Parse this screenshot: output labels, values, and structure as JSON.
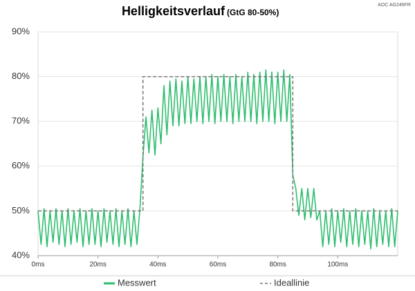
{
  "chart_data": {
    "type": "line",
    "title": "Helligkeitsverlauf",
    "subtitle": "(GtG 80-50%)",
    "annotation": "AOC AG246FR",
    "xlim": [
      0,
      120
    ],
    "xticks": [
      {
        "value": 0,
        "label": "0ms"
      },
      {
        "value": 20,
        "label": "20ms"
      },
      {
        "value": 40,
        "label": "40ms"
      },
      {
        "value": 60,
        "label": "60ms"
      },
      {
        "value": 80,
        "label": "80ms"
      },
      {
        "value": 100,
        "label": "100ms"
      }
    ],
    "ylim": [
      40,
      90
    ],
    "yticks": [
      {
        "value": 40,
        "label": "40%"
      },
      {
        "value": 50,
        "label": "50%"
      },
      {
        "value": 60,
        "label": "60%"
      },
      {
        "value": 70,
        "label": "70%"
      },
      {
        "value": 80,
        "label": "80%"
      },
      {
        "value": 90,
        "label": "90%"
      }
    ],
    "grid": true,
    "legend": "bottom",
    "series": [
      {
        "name": "Messwert",
        "color": "#2dbd6e",
        "dashed": false,
        "x": [
          0,
          1,
          2,
          3,
          4,
          5,
          6,
          7,
          8,
          9,
          10,
          11,
          12,
          13,
          14,
          15,
          16,
          17,
          18,
          19,
          20,
          21,
          22,
          23,
          24,
          25,
          26,
          27,
          28,
          29,
          30,
          31,
          32,
          33,
          34,
          35,
          36,
          37,
          38,
          39,
          40,
          41,
          42,
          43,
          44,
          45,
          46,
          47,
          48,
          49,
          50,
          51,
          52,
          53,
          54,
          55,
          56,
          57,
          58,
          59,
          60,
          61,
          62,
          63,
          64,
          65,
          66,
          67,
          68,
          69,
          70,
          71,
          72,
          73,
          74,
          75,
          76,
          77,
          78,
          79,
          80,
          81,
          82,
          83,
          84,
          85,
          86,
          87,
          88,
          89,
          90,
          91,
          92,
          93,
          94,
          95,
          96,
          97,
          98,
          99,
          100,
          101,
          102,
          103,
          104,
          105,
          106,
          107,
          108,
          109,
          110,
          111,
          112,
          113,
          114,
          115,
          116,
          117,
          118,
          119,
          120
        ],
        "values": [
          50,
          42.5,
          50.5,
          42,
          50,
          43,
          50.5,
          42.5,
          50,
          42,
          50.5,
          42.5,
          50,
          43,
          50.5,
          42,
          50,
          42.5,
          50.5,
          42.5,
          50,
          42,
          50.5,
          43,
          50,
          42.5,
          50.5,
          42,
          50,
          42.5,
          50.5,
          42,
          50,
          42.5,
          50.5,
          62,
          71,
          63,
          72.5,
          62.5,
          73,
          65,
          78,
          67,
          79,
          69,
          79.5,
          69,
          79,
          69.5,
          80,
          69.5,
          79.5,
          70,
          80,
          69.5,
          80,
          70,
          80.5,
          69.5,
          80,
          70,
          80.5,
          70,
          80,
          69.5,
          80.5,
          70,
          80,
          70,
          81,
          70,
          80.5,
          69.5,
          81,
          70,
          81.5,
          70,
          81,
          69.5,
          81,
          70,
          81.5,
          70,
          80.5,
          58,
          55,
          49,
          55,
          48,
          55,
          48.5,
          55,
          48,
          50,
          42,
          50,
          42.5,
          50.5,
          42,
          50,
          43,
          50.5,
          42,
          50,
          42.5,
          50.5,
          42,
          50,
          42.5,
          50,
          41.5,
          50.5,
          42,
          50,
          42.5,
          50,
          42,
          50.5,
          42,
          50
        ]
      },
      {
        "name": "Ideallinie",
        "color": "#777777",
        "dashed": true,
        "x": [
          0,
          35,
          35,
          85,
          85,
          120
        ],
        "values": [
          50,
          50,
          80,
          80,
          50,
          50
        ]
      }
    ]
  }
}
